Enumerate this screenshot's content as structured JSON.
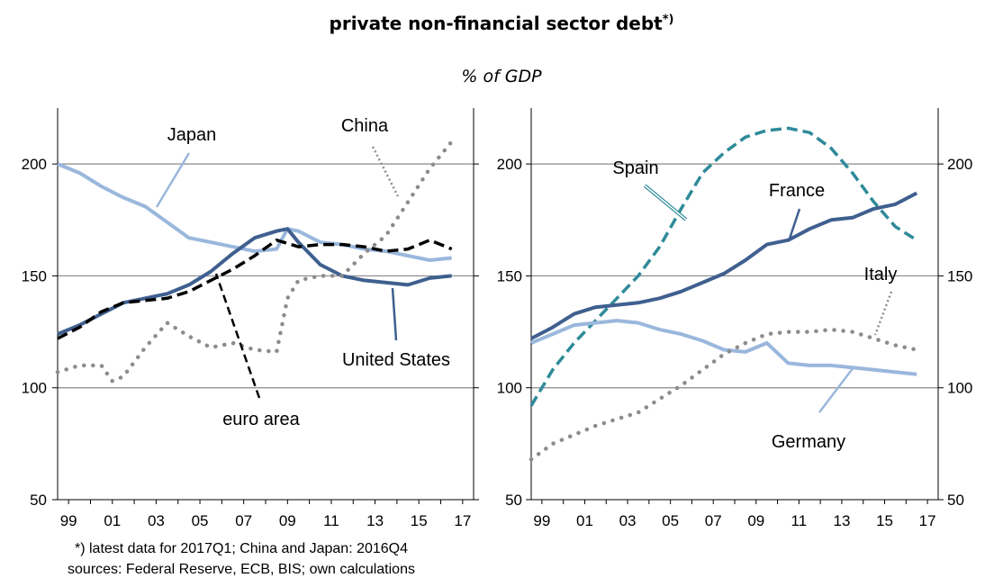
{
  "title": "private non-financial  sector debt",
  "title_marker": "*)",
  "subtitle": "% of GDP",
  "footnote": {
    "line1": "*) latest data for 2017Q1; China and Japan: 2016Q4",
    "line2": "sources: Federal Reserve, ECB, BIS; own calculations"
  },
  "chart_data": [
    {
      "type": "line",
      "ylim": [
        50,
        225
      ],
      "yticks": [
        50,
        100,
        150,
        200
      ],
      "xlim": [
        1998.5,
        2017.5
      ],
      "x_tick_labels": [
        "99",
        "01",
        "03",
        "05",
        "07",
        "09",
        "11",
        "13",
        "15",
        "17"
      ],
      "grid": true,
      "series": [
        {
          "name": "Japan",
          "color": "#9ab7dc",
          "style": "solid",
          "x": [
            1998.5,
            1999.5,
            2000.5,
            2001.5,
            2002.5,
            2003.5,
            2004.5,
            2005.5,
            2006.5,
            2007.5,
            2008.5,
            2009.0,
            2009.5,
            2010.5,
            2011.5,
            2012.5,
            2013.5,
            2014.5,
            2015.5,
            2016.5
          ],
          "y": [
            200,
            196,
            190,
            185,
            181,
            174,
            167,
            165,
            163,
            161,
            162,
            171,
            170,
            165,
            164,
            162,
            161,
            159,
            157,
            158
          ]
        },
        {
          "name": "United States",
          "color": "#3f5f8f",
          "style": "solid",
          "x": [
            1998.5,
            1999.5,
            2000.5,
            2001.5,
            2002.5,
            2003.5,
            2004.5,
            2005.5,
            2006.5,
            2007.5,
            2008.5,
            2009.0,
            2009.5,
            2010.5,
            2011.5,
            2012.5,
            2013.5,
            2014.5,
            2015.5,
            2016.5
          ],
          "y": [
            124,
            128,
            133,
            138,
            140,
            142,
            146,
            152,
            160,
            167,
            170,
            171,
            165,
            155,
            150,
            148,
            147,
            146,
            149,
            150
          ]
        },
        {
          "name": "euro area",
          "color": "#000000",
          "style": "dashed",
          "x": [
            1998.5,
            1999.5,
            2000.5,
            2001.5,
            2002.5,
            2003.5,
            2004.5,
            2005.5,
            2006.5,
            2007.5,
            2008.5,
            2009.5,
            2010.5,
            2011.5,
            2012.5,
            2013.5,
            2014.5,
            2015.5,
            2016.5
          ],
          "y": [
            122,
            127,
            134,
            138,
            139,
            140,
            143,
            148,
            153,
            159,
            166,
            163,
            164,
            164,
            163,
            161,
            162,
            166,
            162
          ]
        },
        {
          "name": "China",
          "color": "#8c8c8c",
          "style": "dotted",
          "x": [
            1998.5,
            1999.5,
            2000.5,
            2001.0,
            2001.5,
            2002.5,
            2003.5,
            2004.5,
            2005.5,
            2006.5,
            2007.5,
            2008.5,
            2009.0,
            2009.5,
            2010.5,
            2011.5,
            2012.5,
            2013.5,
            2014.5,
            2015.5,
            2016.5
          ],
          "y": [
            107,
            110,
            110,
            103,
            105,
            118,
            129,
            123,
            118,
            120,
            117,
            116,
            140,
            148,
            150,
            150,
            160,
            168,
            183,
            198,
            210
          ]
        }
      ]
    },
    {
      "type": "line",
      "ylim": [
        50,
        225
      ],
      "yticks": [
        50,
        100,
        150,
        200
      ],
      "xlim": [
        1998.5,
        2017.5
      ],
      "x_tick_labels": [
        "99",
        "01",
        "03",
        "05",
        "07",
        "09",
        "11",
        "13",
        "15",
        "17"
      ],
      "grid": true,
      "series": [
        {
          "name": "Spain",
          "color": "#2f8a99",
          "style": "dashed",
          "x": [
            1998.5,
            1999.5,
            2000.5,
            2001.5,
            2002.5,
            2003.5,
            2004.5,
            2005.5,
            2006.5,
            2007.5,
            2008.5,
            2009.5,
            2010.5,
            2011.5,
            2012.5,
            2013.5,
            2014.5,
            2015.5,
            2016.5
          ],
          "y": [
            92,
            108,
            120,
            130,
            140,
            150,
            163,
            180,
            196,
            205,
            212,
            215,
            216,
            214,
            207,
            196,
            183,
            172,
            166
          ]
        },
        {
          "name": "France",
          "color": "#3f5f8f",
          "style": "solid",
          "x": [
            1998.5,
            1999.5,
            2000.5,
            2001.5,
            2002.5,
            2003.5,
            2004.5,
            2005.5,
            2006.5,
            2007.5,
            2008.5,
            2009.5,
            2010.5,
            2011.5,
            2012.5,
            2013.5,
            2014.5,
            2015.5,
            2016.5
          ],
          "y": [
            122,
            127,
            133,
            136,
            137,
            138,
            140,
            143,
            147,
            151,
            157,
            164,
            166,
            171,
            175,
            176,
            180,
            182,
            187
          ]
        },
        {
          "name": "Germany",
          "color": "#9ab7dc",
          "style": "solid",
          "x": [
            1998.5,
            1999.5,
            2000.5,
            2001.5,
            2002.5,
            2003.5,
            2004.5,
            2005.5,
            2006.5,
            2007.5,
            2008.5,
            2009.5,
            2010.5,
            2011.5,
            2012.5,
            2013.5,
            2014.5,
            2015.5,
            2016.5
          ],
          "y": [
            120,
            124,
            128,
            129,
            130,
            129,
            126,
            124,
            121,
            117,
            116,
            120,
            111,
            110,
            110,
            109,
            108,
            107,
            106
          ]
        },
        {
          "name": "Italy",
          "color": "#8c8c8c",
          "style": "dotted",
          "x": [
            1998.5,
            1999.5,
            2000.5,
            2001.5,
            2002.5,
            2003.5,
            2004.5,
            2005.5,
            2006.5,
            2007.5,
            2008.5,
            2009.5,
            2010.5,
            2011.5,
            2012.5,
            2013.5,
            2014.5,
            2015.5,
            2016.5
          ],
          "y": [
            68,
            75,
            79,
            83,
            86,
            89,
            95,
            101,
            108,
            115,
            120,
            124,
            125,
            125,
            126,
            125,
            122,
            119,
            117
          ]
        }
      ]
    }
  ]
}
